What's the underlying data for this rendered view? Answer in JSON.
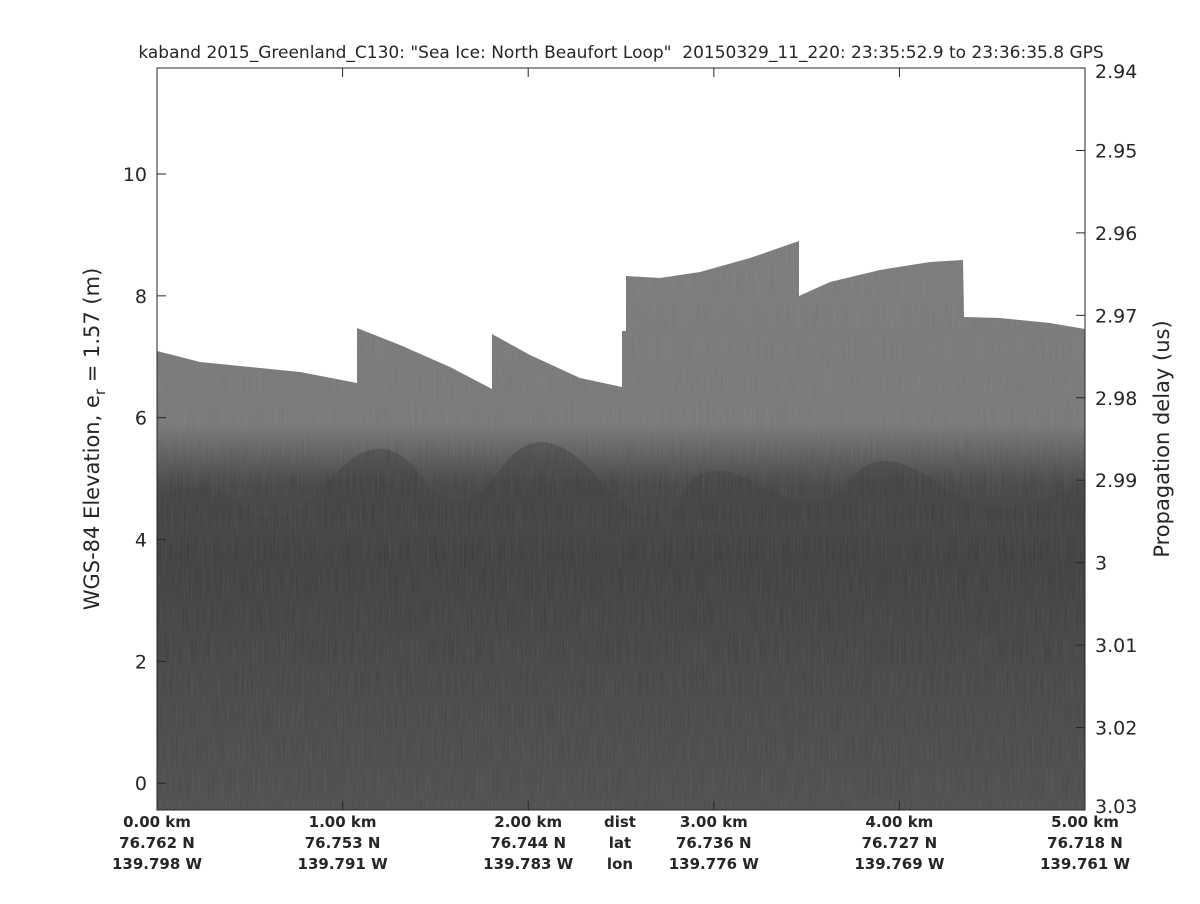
{
  "chart_data": {
    "type": "echogram",
    "title": "kaband 2015_Greenland_C130: \"Sea Ice: North Beaufort Loop\"  20150329_11_220: 23:35:52.9 to 23:36:35.8 GPS",
    "ylabel": "WGS-84 Elevation, e",
    "ylabel_subscript": "r",
    "ylabel_suffix": " = 1.57 (m)",
    "y2label": "Propagation delay (us)",
    "xlim": [
      0,
      5
    ],
    "xticks": [
      {
        "value": 0,
        "label": "0.00 km"
      },
      {
        "value": 1,
        "label": "1.00 km"
      },
      {
        "value": 2,
        "label": "2.00 km"
      },
      {
        "value": 3,
        "label": "3.00 km"
      },
      {
        "value": 4,
        "label": "4.00 km"
      },
      {
        "value": 5,
        "label": "5.00 km"
      }
    ],
    "lat_labels": [
      "76.762 N",
      "76.753 N",
      "76.744 N",
      "76.736 N",
      "76.727 N",
      "76.718 N"
    ],
    "lon_labels": [
      "139.798 W",
      "139.791 W",
      "139.783 W",
      "139.776 W",
      "139.769 W",
      "139.761 W"
    ],
    "row_headers": [
      "dist",
      "lat",
      "lon"
    ],
    "ylim": [
      -0.44,
      11.74
    ],
    "yticks": [
      0,
      2,
      4,
      6,
      8,
      10
    ],
    "y2lim": [
      2.94,
      3.03
    ],
    "y2ticks": [
      2.94,
      2.95,
      2.96,
      2.97,
      2.98,
      2.99,
      3,
      3.01,
      3.02,
      3.03
    ]
  }
}
